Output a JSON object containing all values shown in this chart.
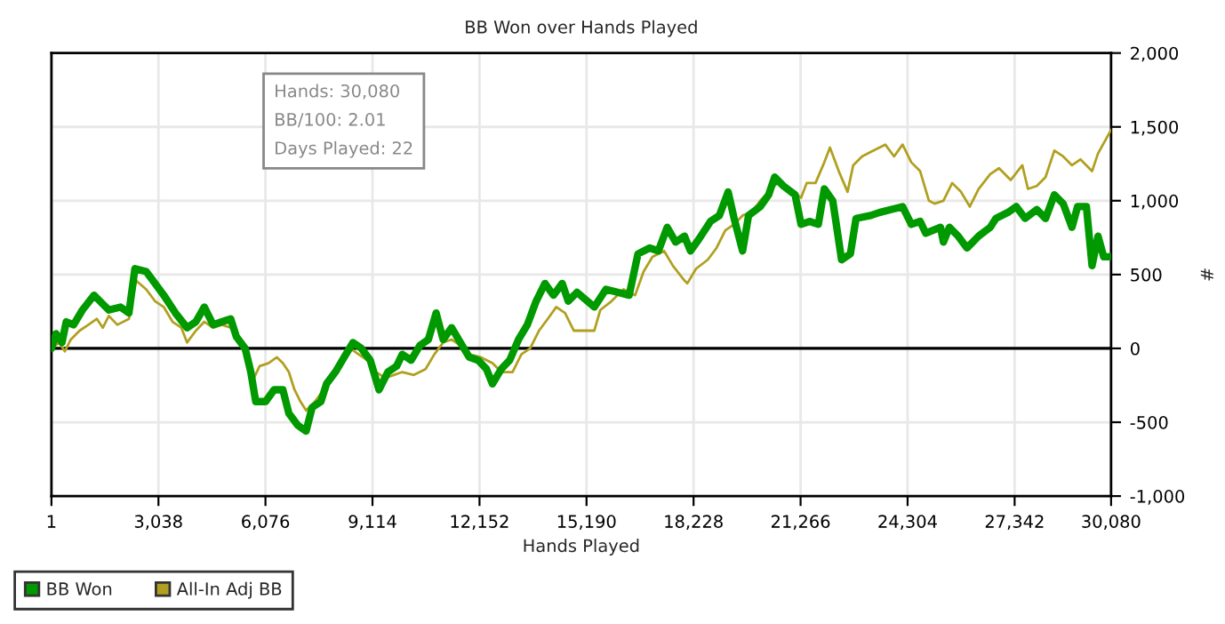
{
  "chart_data": {
    "type": "line",
    "title": "BB Won over Hands Played",
    "xlabel": "Hands Played",
    "ylabel": "#",
    "annotations": [
      "Hands: 30,080",
      "BB/100: 2.01",
      "Days Played: 22"
    ],
    "xlim": [
      1,
      30080
    ],
    "ylim": [
      -1000,
      2000
    ],
    "xticks": [
      1,
      {
        "value": 3038,
        "label": "3,038"
      },
      {
        "value": 6076,
        "label": "6,076"
      },
      {
        "value": 9114,
        "label": "9,114"
      },
      {
        "value": 12152,
        "label": "12,152"
      },
      {
        "value": 15190,
        "label": "15,190"
      },
      {
        "value": 18228,
        "label": "18,228"
      },
      {
        "value": 21266,
        "label": "21,266"
      },
      {
        "value": 24304,
        "label": "24,304"
      },
      {
        "value": 27342,
        "label": "27,342"
      },
      {
        "value": 30080,
        "label": "30,080"
      }
    ],
    "yticks": [
      {
        "value": -1000,
        "label": "-1,000"
      },
      -500,
      0,
      500,
      {
        "value": 1000,
        "label": "1,000"
      },
      {
        "value": 1500,
        "label": "1,500"
      },
      {
        "value": 2000,
        "label": "2,000"
      }
    ],
    "grid": true,
    "legend": "bottom left",
    "marker": "none",
    "line_style": "solid",
    "ref_lines": [
      {
        "axis": "y",
        "value": 0,
        "color": "#000000"
      }
    ],
    "series": [
      {
        "name": "BB Won",
        "color": "#009900",
        "x": [
          1,
          130,
          300,
          420,
          630,
          880,
          1210,
          1460,
          1630,
          1960,
          2200,
          2370,
          2690,
          2940,
          3190,
          3520,
          3850,
          4100,
          4340,
          4590,
          4840,
          5090,
          5250,
          5500,
          5660,
          5800,
          6080,
          6320,
          6570,
          6740,
          6990,
          7230,
          7400,
          7650,
          7810,
          8060,
          8310,
          8560,
          8800,
          9050,
          9300,
          9550,
          9800,
          9960,
          10210,
          10460,
          10700,
          10920,
          11120,
          11360,
          11610,
          11860,
          12110,
          12350,
          12520,
          12770,
          13010,
          13260,
          13510,
          13760,
          14010,
          14250,
          14500,
          14670,
          14920,
          15410,
          15740,
          16070,
          16400,
          16650,
          16980,
          17230,
          17480,
          17720,
          17970,
          18140,
          18380,
          18710,
          18960,
          19210,
          19380,
          19620,
          19790,
          20120,
          20360,
          20530,
          20780,
          21110,
          21280,
          21520,
          21770,
          21940,
          22180,
          22430,
          22680,
          22840,
          23260,
          23500,
          23830,
          24160,
          24410,
          24660,
          24820,
          25240,
          25320,
          25490,
          25740,
          25990,
          26320,
          26650,
          26810,
          27150,
          27390,
          27640,
          27970,
          28220,
          28470,
          28720,
          28970,
          29130,
          29380,
          29540,
          29710,
          29870,
          30080
        ],
        "values": [
          0,
          100,
          40,
          180,
          160,
          260,
          360,
          300,
          260,
          280,
          240,
          540,
          520,
          440,
          360,
          240,
          140,
          180,
          280,
          160,
          180,
          200,
          80,
          0,
          -160,
          -360,
          -360,
          -280,
          -280,
          -440,
          -520,
          -560,
          -400,
          -360,
          -240,
          -160,
          -60,
          40,
          0,
          -80,
          -280,
          -160,
          -120,
          -40,
          -80,
          20,
          60,
          240,
          60,
          140,
          40,
          -60,
          -80,
          -140,
          -240,
          -140,
          -80,
          60,
          160,
          320,
          440,
          360,
          440,
          320,
          380,
          280,
          400,
          380,
          360,
          640,
          680,
          660,
          820,
          720,
          760,
          660,
          740,
          860,
          900,
          1060,
          880,
          660,
          900,
          960,
          1040,
          1160,
          1100,
          1040,
          840,
          860,
          840,
          1080,
          1000,
          600,
          640,
          880,
          900,
          920,
          940,
          960,
          840,
          860,
          780,
          820,
          720,
          820,
          760,
          680,
          760,
          820,
          880,
          920,
          960,
          880,
          940,
          880,
          1040,
          980,
          820,
          960,
          960,
          560,
          760,
          620,
          620
        ]
      },
      {
        "name": "All-In Adj BB",
        "color": "#b0a020",
        "x": [
          1,
          220,
          380,
          550,
          800,
          1050,
          1290,
          1460,
          1630,
          1870,
          2200,
          2400,
          2690,
          2940,
          3190,
          3440,
          3690,
          3850,
          4100,
          4340,
          4590,
          4840,
          5090,
          5330,
          5580,
          5750,
          5910,
          6160,
          6400,
          6570,
          6740,
          6900,
          7070,
          7230,
          7480,
          7730,
          7980,
          8230,
          8480,
          8720,
          8970,
          9220,
          9470,
          9720,
          9960,
          10290,
          10620,
          10870,
          11120,
          11360,
          11610,
          11860,
          12190,
          12520,
          12770,
          13090,
          13340,
          13590,
          13840,
          14090,
          14330,
          14580,
          14830,
          15080,
          15410,
          15580,
          15900,
          16240,
          16570,
          16810,
          17060,
          17390,
          17640,
          17970,
          18050,
          18300,
          18630,
          18880,
          19130,
          19380,
          19620,
          19870,
          20120,
          20360,
          20610,
          20940,
          21280,
          21440,
          21690,
          21940,
          22100,
          22350,
          22600,
          22760,
          23010,
          23340,
          23670,
          23920,
          24160,
          24410,
          24660,
          24910,
          25070,
          25320,
          25570,
          25820,
          26070,
          26320,
          26650,
          26900,
          27230,
          27560,
          27720,
          27970,
          28220,
          28470,
          28720,
          28970,
          29210,
          29540,
          29710,
          30080
        ],
        "values": [
          0,
          40,
          -20,
          60,
          120,
          160,
          200,
          140,
          220,
          160,
          200,
          460,
          400,
          320,
          280,
          180,
          140,
          40,
          120,
          180,
          140,
          160,
          140,
          40,
          -80,
          -200,
          -120,
          -100,
          -60,
          -100,
          -160,
          -280,
          -360,
          -420,
          -360,
          -280,
          -200,
          -80,
          0,
          -40,
          -80,
          -160,
          -200,
          -180,
          -160,
          -180,
          -140,
          -40,
          40,
          60,
          20,
          -40,
          -60,
          -100,
          -160,
          -160,
          -40,
          0,
          120,
          200,
          280,
          240,
          120,
          120,
          120,
          260,
          320,
          400,
          360,
          520,
          620,
          660,
          560,
          460,
          440,
          540,
          600,
          680,
          800,
          840,
          900,
          920,
          1000,
          1060,
          1120,
          1080,
          1020,
          1120,
          1120,
          1260,
          1360,
          1200,
          1060,
          1240,
          1300,
          1340,
          1380,
          1300,
          1380,
          1260,
          1200,
          1000,
          980,
          1000,
          1120,
          1060,
          960,
          1080,
          1180,
          1220,
          1140,
          1240,
          1080,
          1100,
          1160,
          1340,
          1300,
          1240,
          1280,
          1200,
          1320,
          1480
        ]
      }
    ]
  }
}
